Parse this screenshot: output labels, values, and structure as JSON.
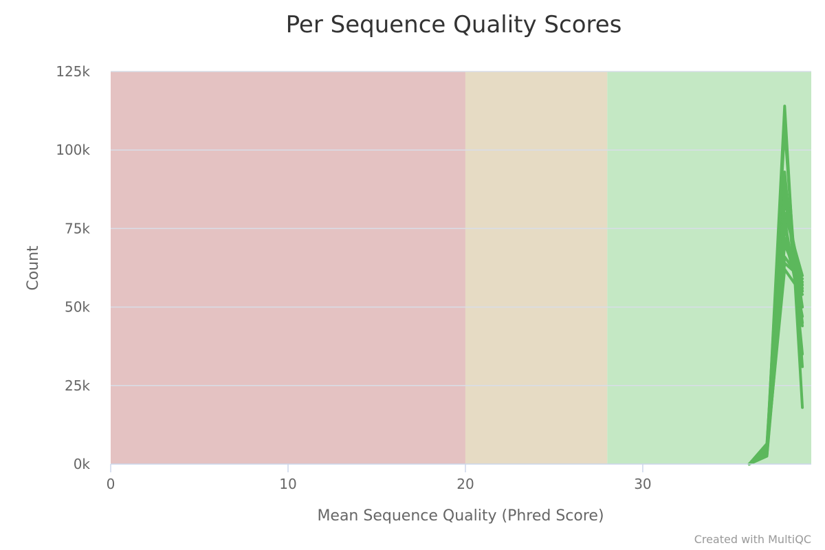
{
  "chart_data": {
    "type": "line",
    "title": "Per Sequence Quality Scores",
    "xlabel": "Mean Sequence Quality (Phred Score)",
    "ylabel": "Count",
    "xlim": [
      0,
      39.5
    ],
    "ylim": [
      0,
      125000
    ],
    "x_ticks": [
      0,
      10,
      20,
      30
    ],
    "x_tick_labels": [
      "0",
      "10",
      "20",
      "30"
    ],
    "y_ticks": [
      0,
      25000,
      50000,
      75000,
      100000,
      125000
    ],
    "y_tick_labels": [
      "0k",
      "25k",
      "50k",
      "75k",
      "100k",
      "125k"
    ],
    "grid": true,
    "bands": [
      {
        "from": 0,
        "to": 20,
        "color": "#e4c2c2"
      },
      {
        "from": 20,
        "to": 28,
        "color": "#e6dbc4"
      },
      {
        "from": 28,
        "to": 39.5,
        "color": "#c4e8c4"
      }
    ],
    "series_color": "#5cb85c",
    "x": [
      36,
      37,
      38,
      39
    ],
    "series": [
      {
        "values": [
          0,
          3000,
          114000,
          18000
        ]
      },
      {
        "values": [
          0,
          5000,
          107000,
          31000
        ]
      },
      {
        "values": [
          0,
          6500,
          93000,
          35000
        ]
      },
      {
        "values": [
          0,
          4000,
          90000,
          45000
        ]
      },
      {
        "values": [
          0,
          3500,
          88000,
          50000
        ]
      },
      {
        "values": [
          0,
          5500,
          86000,
          55000
        ]
      },
      {
        "values": [
          0,
          6000,
          84000,
          57000
        ]
      },
      {
        "values": [
          0,
          4500,
          80000,
          60000
        ]
      },
      {
        "values": [
          0,
          3200,
          76000,
          47000
        ]
      },
      {
        "values": [
          0,
          2800,
          70000,
          56000
        ]
      },
      {
        "values": [
          0,
          2500,
          66000,
          58000
        ]
      },
      {
        "values": [
          0,
          3800,
          64000,
          59000
        ]
      },
      {
        "values": [
          0,
          4200,
          62000,
          54000
        ]
      },
      {
        "values": [
          0,
          5000,
          72000,
          50000
        ]
      },
      {
        "values": [
          0,
          3000,
          78000,
          44000
        ]
      }
    ]
  },
  "credit": "Created with MultiQC"
}
